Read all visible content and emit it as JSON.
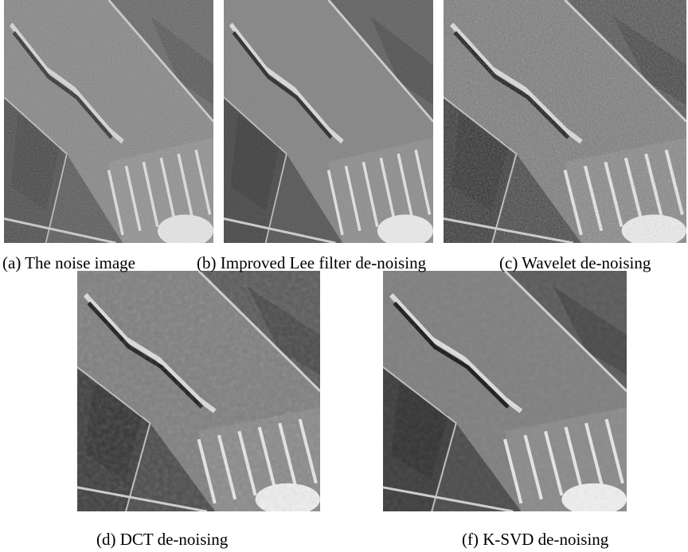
{
  "figure": {
    "panels": [
      {
        "caption": "(a) The noise image"
      },
      {
        "caption": "(b) Improved Lee filter de-noising"
      },
      {
        "caption": "(c) Wavelet de-noising"
      },
      {
        "caption": "(d) DCT de-noising"
      },
      {
        "caption": "(f) K-SVD de-noising"
      }
    ]
  }
}
